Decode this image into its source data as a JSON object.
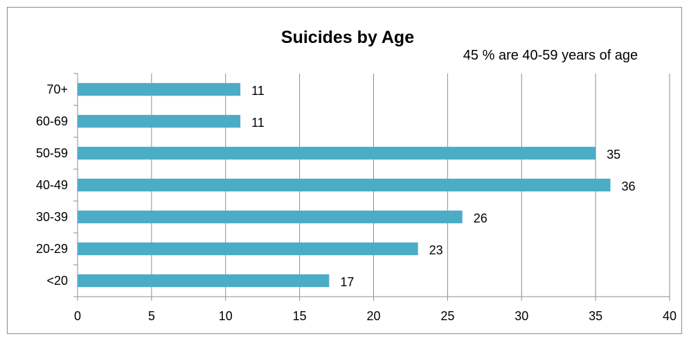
{
  "chart_data": {
    "type": "bar",
    "orientation": "horizontal",
    "title": "Suicides by Age",
    "subtitle": "45 % are 40-59 years of age",
    "categories": [
      "<20",
      "20-29",
      "30-39",
      "40-49",
      "50-59",
      "60-69",
      "70+"
    ],
    "values": [
      17,
      23,
      26,
      36,
      35,
      11,
      11
    ],
    "xlim": [
      0,
      40
    ],
    "x_ticks": [
      0,
      5,
      10,
      15,
      20,
      25,
      30,
      35,
      40
    ],
    "grid": "vertical",
    "legend": "none",
    "bar_color": "#4bacc6"
  }
}
